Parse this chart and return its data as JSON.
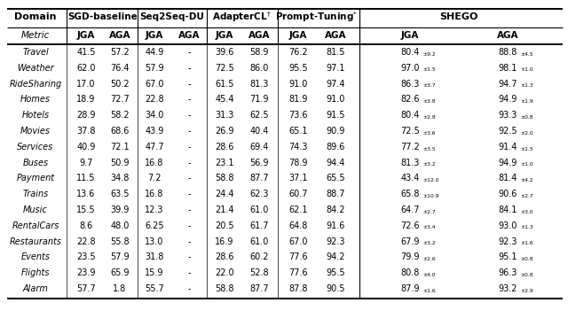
{
  "domains": [
    "Travel",
    "Weather",
    "RideSharing",
    "Homes",
    "Hotels",
    "Movies",
    "Services",
    "Buses",
    "Payment",
    "Trains",
    "Music",
    "RentalCars",
    "Restaurants",
    "Events",
    "Flights",
    "Alarm"
  ],
  "data": [
    [
      "41.5",
      "57.2",
      "44.9",
      "-",
      "39.6",
      "58.9",
      "76.2",
      "81.5",
      "80.4",
      "9.2",
      "88.8",
      "4.5"
    ],
    [
      "62.0",
      "76.4",
      "57.9",
      "-",
      "72.5",
      "86.0",
      "95.5",
      "97.1",
      "97.0",
      "1.5",
      "98.1",
      "1.0"
    ],
    [
      "17.0",
      "50.2",
      "67.0",
      "-",
      "61.5",
      "81.3",
      "91.0",
      "97.4",
      "86.3",
      "3.7",
      "94.7",
      "1.3"
    ],
    [
      "18.9",
      "72.7",
      "22.8",
      "-",
      "45.4",
      "71.9",
      "81.9",
      "91.0",
      "82.6",
      "3.8",
      "94.9",
      "1.9"
    ],
    [
      "28.9",
      "58.2",
      "34.0",
      "-",
      "31.3",
      "62.5",
      "73.6",
      "91.5",
      "80.4",
      "2.8",
      "93.3",
      "0.8"
    ],
    [
      "37.8",
      "68.6",
      "43.9",
      "-",
      "26.9",
      "40.4",
      "65.1",
      "90.9",
      "72.5",
      "3.6",
      "92.5",
      "2.0"
    ],
    [
      "40.9",
      "72.1",
      "47.7",
      "-",
      "28.6",
      "69.4",
      "74.3",
      "89.6",
      "77.2",
      "3.5",
      "91.4",
      "1.5"
    ],
    [
      "9.7",
      "50.9",
      "16.8",
      "-",
      "23.1",
      "56.9",
      "78.9",
      "94.4",
      "81.3",
      "3.2",
      "94.9",
      "1.0"
    ],
    [
      "11.5",
      "34.8",
      "7.2",
      "-",
      "58.8",
      "87.7",
      "37.1",
      "65.5",
      "43.4",
      "12.0",
      "81.4",
      "4.2"
    ],
    [
      "13.6",
      "63.5",
      "16.8",
      "-",
      "24.4",
      "62.3",
      "60.7",
      "88.7",
      "65.8",
      "10.9",
      "90.6",
      "2.7"
    ],
    [
      "15.5",
      "39.9",
      "12.3",
      "-",
      "21.4",
      "61.0",
      "62.1",
      "84.2",
      "64.7",
      "2.7",
      "84.1",
      "3.0"
    ],
    [
      "8.6",
      "48.0",
      "6.25",
      "-",
      "20.5",
      "61.7",
      "64.8",
      "91.6",
      "72.6",
      "3.4",
      "93.0",
      "1.3"
    ],
    [
      "22.8",
      "55.8",
      "13.0",
      "-",
      "16.9",
      "61.0",
      "67.0",
      "92.3",
      "67.9",
      "3.2",
      "92.3",
      "1.6"
    ],
    [
      "23.5",
      "57.9",
      "31.8",
      "-",
      "28.6",
      "60.2",
      "77.6",
      "94.2",
      "79.9",
      "2.6",
      "95.1",
      "0.8"
    ],
    [
      "23.9",
      "65.9",
      "15.9",
      "-",
      "22.0",
      "52.8",
      "77.6",
      "95.5",
      "80.8",
      "4.0",
      "96.3",
      "0.8"
    ],
    [
      "57.7",
      "1.8",
      "55.7",
      "-",
      "58.8",
      "87.7",
      "87.8",
      "90.5",
      "87.9",
      "1.6",
      "93.2",
      "2.9"
    ]
  ],
  "bg_color": "#ffffff"
}
